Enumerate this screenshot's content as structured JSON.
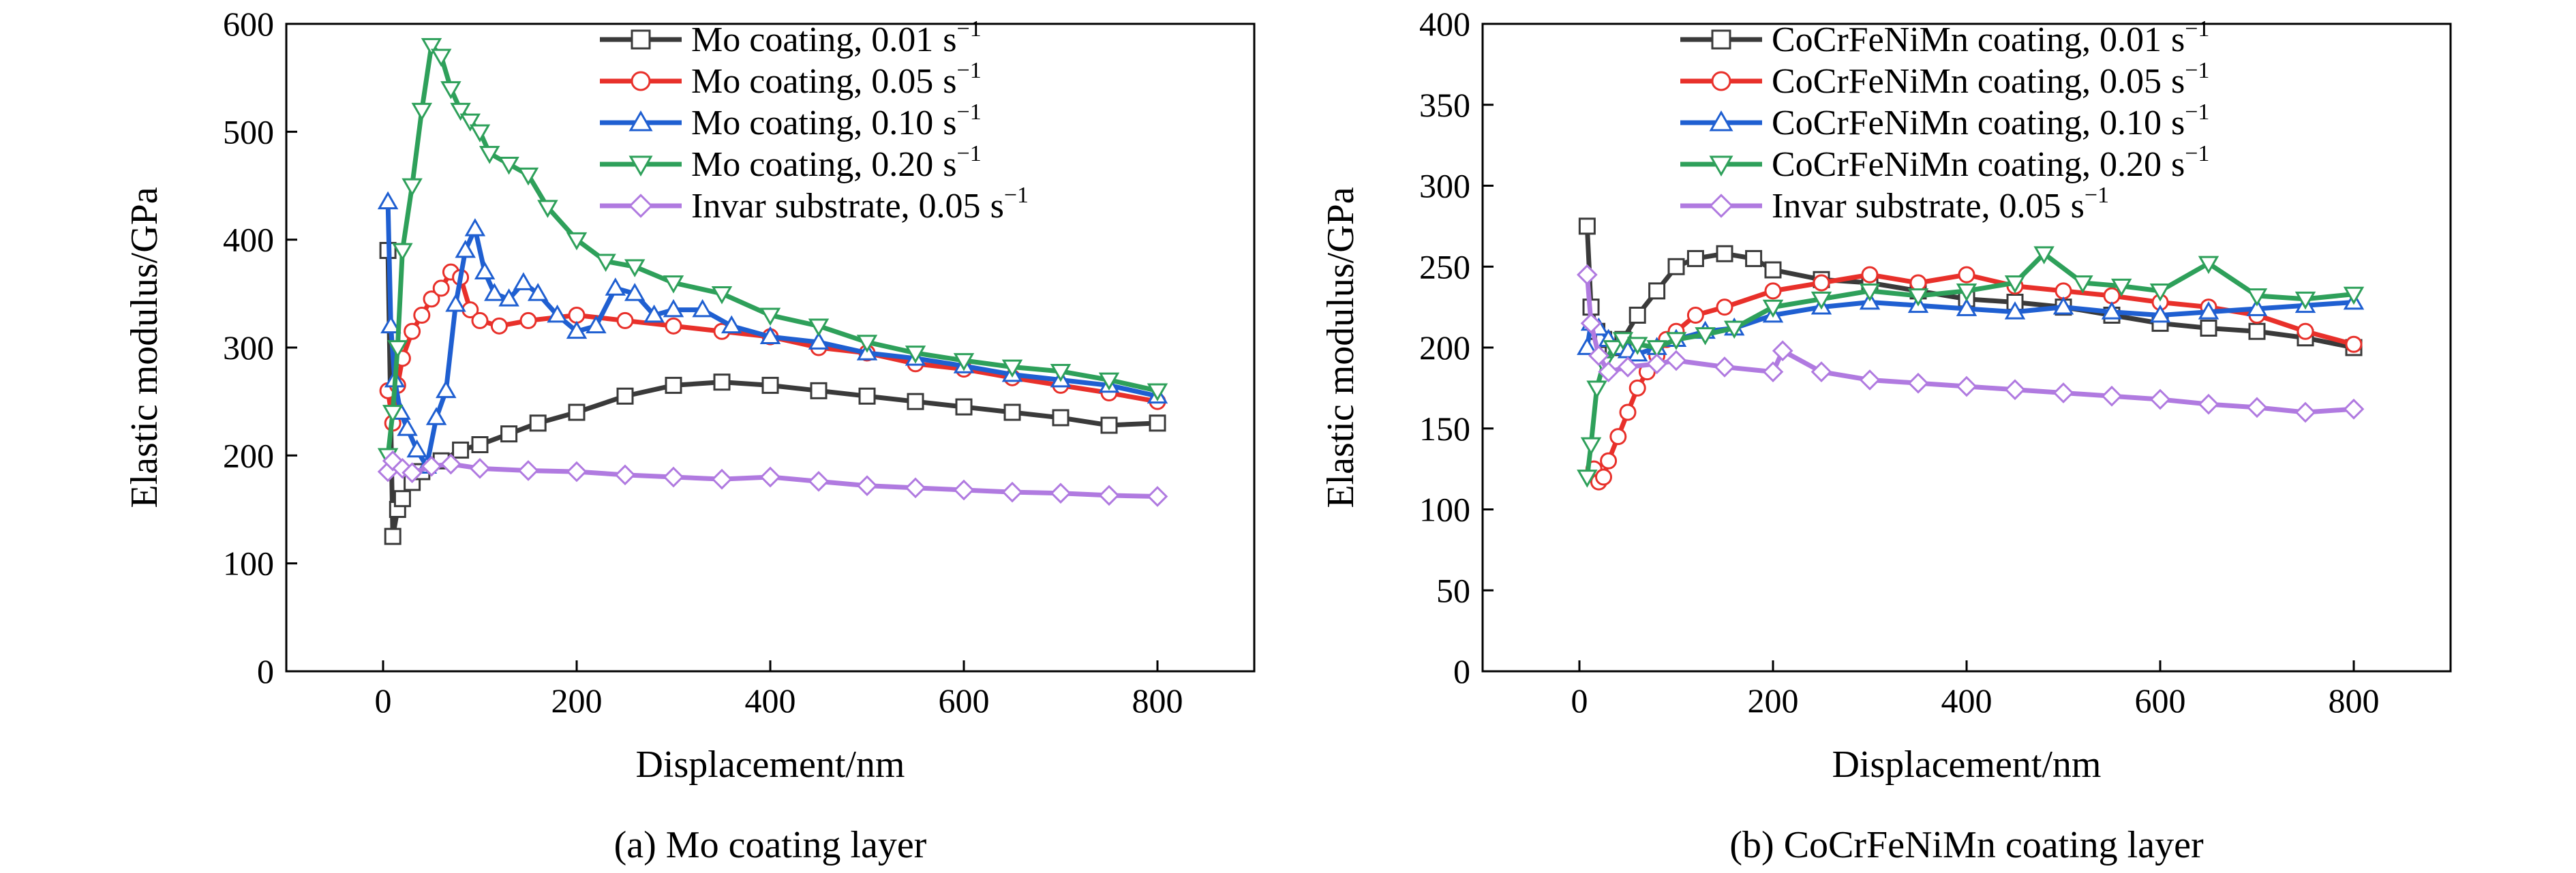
{
  "figure": {
    "colors": {
      "black": "#3a3a3a",
      "red": "#e8302a",
      "blue": "#1f5fd1",
      "green": "#2ea05a",
      "purple": "#b07ae0"
    }
  },
  "chart_data": [
    {
      "id": "a",
      "type": "line",
      "caption": "(a) Mo coating layer",
      "xlabel": "Displacement/nm",
      "ylabel": "Elastic modulus/GPa",
      "xlim": [
        -100,
        900
      ],
      "ylim": [
        0,
        600
      ],
      "xticks": [
        0,
        200,
        400,
        600,
        800
      ],
      "yticks": [
        0,
        100,
        200,
        300,
        400,
        500,
        600
      ],
      "legend_position": "top-right",
      "series": [
        {
          "name": "Mo coating, 0.01",
          "unit": "s",
          "exp": "−1",
          "color": "#3a3a3a",
          "marker": "square",
          "x": [
            5,
            10,
            15,
            20,
            30,
            40,
            60,
            80,
            100,
            130,
            160,
            200,
            250,
            300,
            350,
            400,
            450,
            500,
            550,
            600,
            650,
            700,
            750,
            800
          ],
          "y": [
            390,
            125,
            150,
            160,
            175,
            185,
            195,
            205,
            210,
            220,
            230,
            240,
            255,
            265,
            268,
            265,
            260,
            255,
            250,
            245,
            240,
            235,
            228,
            230
          ]
        },
        {
          "name": "Mo coating, 0.05",
          "unit": "s",
          "exp": "−1",
          "color": "#e8302a",
          "marker": "circle",
          "x": [
            5,
            10,
            15,
            20,
            30,
            40,
            50,
            60,
            70,
            80,
            90,
            100,
            120,
            150,
            200,
            250,
            300,
            350,
            400,
            450,
            500,
            550,
            600,
            650,
            700,
            750,
            800
          ],
          "y": [
            260,
            230,
            265,
            290,
            315,
            330,
            345,
            355,
            370,
            365,
            335,
            325,
            320,
            325,
            330,
            325,
            320,
            315,
            310,
            300,
            295,
            285,
            280,
            272,
            265,
            258,
            250
          ]
        },
        {
          "name": "Mo coating, 0.10",
          "unit": "s",
          "exp": "−1",
          "color": "#1f5fd1",
          "marker": "triangle-up",
          "x": [
            5,
            8,
            12,
            18,
            25,
            35,
            45,
            55,
            65,
            75,
            85,
            95,
            105,
            115,
            130,
            145,
            160,
            180,
            200,
            220,
            240,
            260,
            280,
            300,
            330,
            360,
            400,
            450,
            500,
            550,
            600,
            650,
            700,
            750,
            800
          ],
          "y": [
            435,
            320,
            270,
            240,
            225,
            205,
            190,
            235,
            260,
            340,
            390,
            410,
            370,
            350,
            345,
            360,
            350,
            330,
            315,
            320,
            355,
            350,
            330,
            335,
            335,
            320,
            310,
            305,
            295,
            290,
            283,
            275,
            270,
            265,
            255
          ]
        },
        {
          "name": "Mo coating, 0.20",
          "unit": "s",
          "exp": "−1",
          "color": "#2ea05a",
          "marker": "triangle-down",
          "x": [
            5,
            10,
            15,
            20,
            30,
            40,
            50,
            60,
            70,
            80,
            90,
            100,
            110,
            130,
            150,
            170,
            200,
            230,
            260,
            300,
            350,
            400,
            450,
            500,
            550,
            600,
            650,
            700,
            750,
            800
          ],
          "y": [
            200,
            240,
            300,
            390,
            450,
            520,
            580,
            570,
            540,
            520,
            510,
            500,
            480,
            470,
            460,
            430,
            400,
            380,
            375,
            360,
            350,
            330,
            320,
            305,
            295,
            288,
            282,
            278,
            270,
            260
          ]
        },
        {
          "name": "Invar substrate, 0.05",
          "unit": "s",
          "exp": "−1",
          "color": "#b07ae0",
          "marker": "diamond",
          "x": [
            5,
            10,
            20,
            30,
            50,
            70,
            100,
            150,
            200,
            250,
            300,
            350,
            400,
            450,
            500,
            550,
            600,
            650,
            700,
            750,
            800
          ],
          "y": [
            185,
            195,
            188,
            184,
            190,
            192,
            188,
            186,
            185,
            182,
            180,
            178,
            180,
            176,
            172,
            170,
            168,
            166,
            165,
            163,
            162
          ]
        }
      ]
    },
    {
      "id": "b",
      "type": "line",
      "caption": "(b) CoCrFeNiMn coating layer",
      "xlabel": "Displacement/nm",
      "ylabel": "Elastic modulus/GPa",
      "xlim": [
        -100,
        900
      ],
      "ylim": [
        0,
        400
      ],
      "xticks": [
        0,
        200,
        400,
        600,
        800
      ],
      "yticks": [
        0,
        50,
        100,
        150,
        200,
        250,
        300,
        350,
        400
      ],
      "legend_position": "top-right",
      "series": [
        {
          "name": "CoCrFeNiMn coating, 0.01",
          "unit": "s",
          "exp": "−1",
          "color": "#3a3a3a",
          "marker": "square",
          "x": [
            8,
            12,
            18,
            25,
            35,
            45,
            60,
            80,
            100,
            120,
            150,
            180,
            200,
            250,
            300,
            350,
            400,
            450,
            500,
            550,
            600,
            650,
            700,
            750,
            800
          ],
          "y": [
            275,
            225,
            210,
            205,
            200,
            205,
            220,
            235,
            250,
            255,
            258,
            255,
            248,
            242,
            240,
            235,
            230,
            228,
            225,
            220,
            215,
            212,
            210,
            206,
            200
          ]
        },
        {
          "name": "CoCrFeNiMn coating, 0.05",
          "unit": "s",
          "exp": "−1",
          "color": "#e8302a",
          "marker": "circle",
          "x": [
            15,
            20,
            25,
            30,
            40,
            50,
            60,
            70,
            80,
            90,
            100,
            120,
            150,
            200,
            250,
            300,
            350,
            400,
            450,
            500,
            550,
            600,
            650,
            700,
            750,
            800
          ],
          "y": [
            125,
            117,
            120,
            130,
            145,
            160,
            175,
            185,
            195,
            205,
            210,
            220,
            225,
            235,
            240,
            245,
            240,
            245,
            238,
            235,
            232,
            228,
            225,
            220,
            210,
            202
          ]
        },
        {
          "name": "CoCrFeNiMn coating, 0.10",
          "unit": "s",
          "exp": "−1",
          "color": "#1f5fd1",
          "marker": "triangle-up",
          "x": [
            8,
            12,
            20,
            30,
            40,
            50,
            60,
            80,
            100,
            130,
            160,
            200,
            250,
            300,
            350,
            400,
            450,
            500,
            550,
            600,
            650,
            700,
            750,
            800
          ],
          "y": [
            200,
            215,
            212,
            205,
            200,
            198,
            196,
            200,
            205,
            210,
            212,
            220,
            225,
            228,
            226,
            224,
            222,
            225,
            222,
            220,
            222,
            224,
            226,
            228
          ]
        },
        {
          "name": "CoCrFeNiMn coating, 0.20",
          "unit": "s",
          "exp": "−1",
          "color": "#2ea05a",
          "marker": "triangle-down",
          "x": [
            8,
            12,
            18,
            25,
            35,
            45,
            60,
            80,
            100,
            130,
            160,
            200,
            250,
            300,
            350,
            400,
            450,
            480,
            520,
            560,
            600,
            650,
            700,
            750,
            800
          ],
          "y": [
            120,
            140,
            175,
            190,
            200,
            205,
            202,
            200,
            205,
            208,
            212,
            225,
            230,
            235,
            232,
            235,
            240,
            258,
            240,
            238,
            235,
            252,
            232,
            230,
            233
          ]
        },
        {
          "name": "Invar substrate, 0.05",
          "unit": "s",
          "exp": "−1",
          "color": "#b07ae0",
          "marker": "diamond",
          "x": [
            8,
            12,
            20,
            30,
            50,
            80,
            100,
            150,
            200,
            210,
            250,
            300,
            350,
            400,
            450,
            500,
            550,
            600,
            650,
            700,
            750,
            800
          ],
          "y": [
            245,
            215,
            195,
            185,
            188,
            190,
            192,
            188,
            185,
            198,
            185,
            180,
            178,
            176,
            174,
            172,
            170,
            168,
            165,
            163,
            160,
            162
          ]
        }
      ]
    }
  ]
}
